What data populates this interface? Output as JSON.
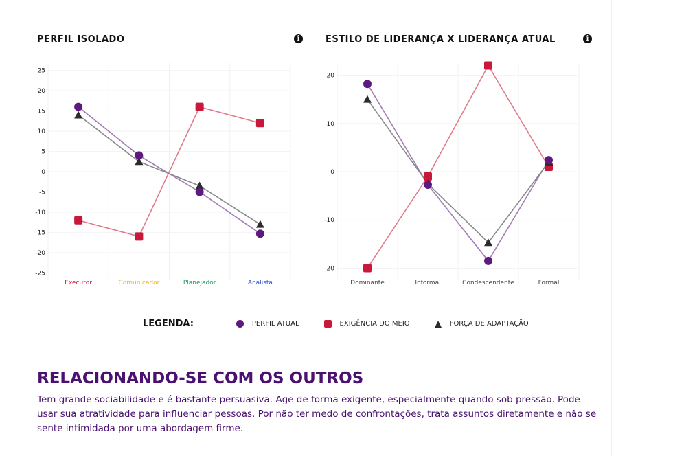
{
  "legend": {
    "label": "LEGENDA:",
    "items": [
      {
        "name": "PERFIL ATUAL",
        "symbol": "circle",
        "color": "#5c1a7e"
      },
      {
        "name": "EXIGÊNCIA DO MEIO",
        "symbol": "square",
        "color": "#c8193a"
      },
      {
        "name": "FORÇA DE ADAPTAÇÃO",
        "symbol": "triangle",
        "color": "#2b2b2b"
      }
    ]
  },
  "section": {
    "title": "RELACIONANDO-SE COM OS OUTROS",
    "text": "Tem grande sociabilidade e é bastante persuasiva. Age de forma exigente, especialmente quando sob pressão. Pode usar sua atratividade para influenciar pessoas. Por não ter medo de confrontações, trata assuntos diretamente e não se sente intimidada por uma abordagem firme."
  },
  "icons": {
    "info": "info-icon"
  },
  "chart_data": [
    {
      "type": "line",
      "title": "PERFIL ISOLADO",
      "categories": [
        "Executor",
        "Comunicador",
        "Planejador",
        "Analista"
      ],
      "category_colors": [
        "#c8193a",
        "#f5b800",
        "#1a9e5a",
        "#2a4fd6"
      ],
      "yticks": [
        25,
        20,
        15,
        10,
        5,
        0,
        -5,
        -10,
        -15,
        -20,
        -25
      ],
      "ylim": [
        -26.8,
        26.8
      ],
      "grid": true,
      "series": [
        {
          "name": "PERFIL ATUAL",
          "marker": "circle",
          "color": "#5c1a7e",
          "line_color": "#a07ab8",
          "values": [
            16,
            4,
            -5,
            -15.3
          ]
        },
        {
          "name": "EXIGÊNCIA DO MEIO",
          "marker": "square",
          "color": "#c8193a",
          "line_color": "#e07a8a",
          "values": [
            -12,
            -16,
            16,
            12
          ]
        },
        {
          "name": "FORÇA DE ADAPTAÇÃO",
          "marker": "triangle",
          "color": "#2b2b2b",
          "line_color": "#888888",
          "values": [
            14,
            2.5,
            -3.5,
            -13
          ]
        }
      ]
    },
    {
      "type": "line",
      "title": "ESTILO DE LIDERANÇA X LIDERANÇA ATUAL",
      "categories": [
        "Dominante",
        "Informal",
        "Condescendente",
        "Formal"
      ],
      "category_colors": [
        "#444444",
        "#444444",
        "#444444",
        "#444444"
      ],
      "yticks": [
        20,
        10,
        0,
        -10,
        -20
      ],
      "ylim": [
        -22.5,
        22.5
      ],
      "grid": true,
      "series": [
        {
          "name": "PERFIL ATUAL",
          "marker": "circle",
          "color": "#5c1a7e",
          "line_color": "#a07ab8",
          "values": [
            18.2,
            -2.7,
            -18.5,
            2.4
          ]
        },
        {
          "name": "EXIGÊNCIA DO MEIO",
          "marker": "square",
          "color": "#c8193a",
          "line_color": "#e07a8a",
          "values": [
            -20,
            -1,
            22,
            1
          ]
        },
        {
          "name": "FORÇA DE ADAPTAÇÃO",
          "marker": "triangle",
          "color": "#2b2b2b",
          "line_color": "#888888",
          "values": [
            15,
            -2.5,
            -14.7,
            2
          ]
        }
      ]
    }
  ]
}
